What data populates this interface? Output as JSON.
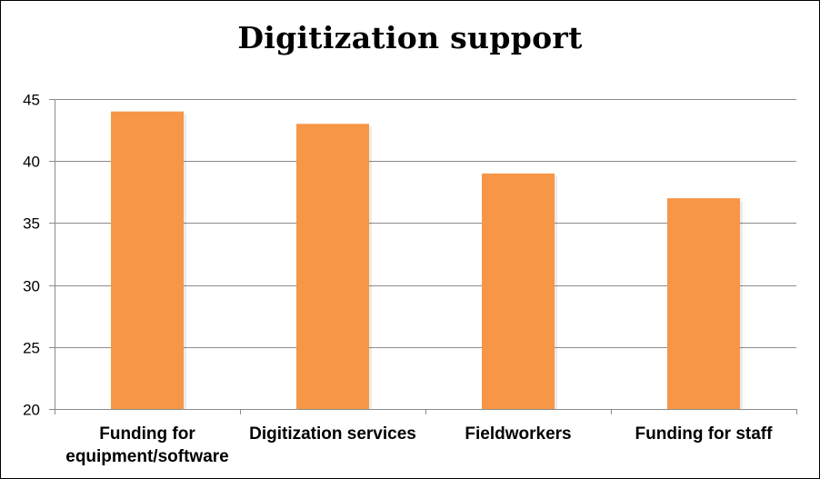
{
  "chart_data": {
    "type": "bar",
    "title": "Digitization support",
    "categories": [
      [
        "Funding for",
        "equipment/software"
      ],
      [
        "Digitization services"
      ],
      [
        "Fieldworkers"
      ],
      [
        "Funding for staff"
      ]
    ],
    "values": [
      44,
      43,
      39,
      37
    ],
    "ylim": [
      20,
      45
    ],
    "yticks": [
      20,
      25,
      30,
      35,
      40,
      45
    ],
    "grid": true,
    "legend": "none",
    "bar_color": "#F79646",
    "grid_color": "#8C8C8C"
  }
}
